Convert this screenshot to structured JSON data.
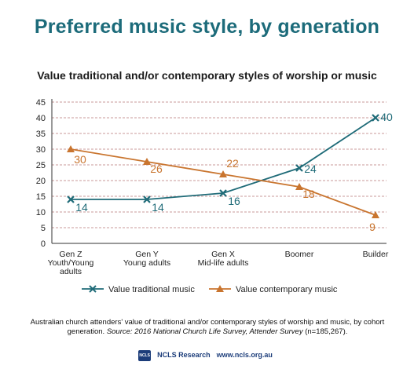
{
  "title": "Preferred music style, by generation",
  "subtitle": "Value traditional and/or contemporary styles of worship or music",
  "chart_data": {
    "type": "line",
    "categories": [
      "Gen Z\nYouth/Young\nadults",
      "Gen Y\nYoung adults",
      "Gen X\nMid-life adults",
      "Boomer",
      "Builder"
    ],
    "ylim": [
      0,
      45
    ],
    "yticks": [
      0,
      5,
      10,
      15,
      20,
      25,
      30,
      35,
      40,
      45
    ],
    "grid": true,
    "legend_position": "bottom",
    "series": [
      {
        "name": "Value traditional music",
        "values": [
          14,
          14,
          16,
          24,
          40
        ],
        "color": "#1f6b78",
        "marker": "x"
      },
      {
        "name": "Value contemporary music",
        "values": [
          30,
          26,
          22,
          18,
          9
        ],
        "color": "#c9752f",
        "marker": "triangle"
      }
    ]
  },
  "caption": {
    "text": "Australian church attenders' value of traditional and/or contemporary styles of worship and music, by cohort generation. ",
    "source": "Source: 2016 National Church Life Survey, Attender Survey",
    "n": " (n=185,267)."
  },
  "footer": {
    "logo_text": "NCLS",
    "org": "NCLS Research",
    "url": "www.ncls.org.au"
  }
}
